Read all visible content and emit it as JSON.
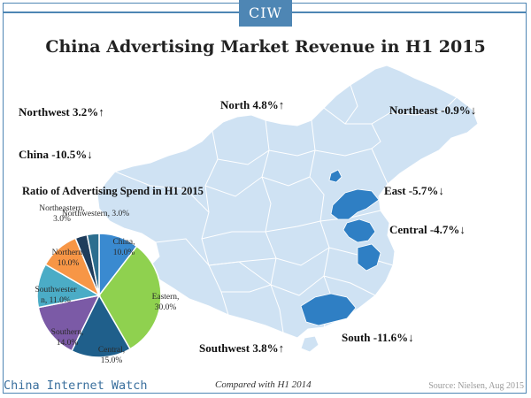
{
  "logo": "CIW",
  "title": "China Advertising Market Revenue in H1 2015",
  "regions": [
    {
      "id": "northwest",
      "label": "Northwest  3.2%↑"
    },
    {
      "id": "north",
      "label": "North 4.8%↑"
    },
    {
      "id": "northeast",
      "label": "Northeast -0.9%↓"
    },
    {
      "id": "china",
      "label": "China -10.5%↓"
    },
    {
      "id": "east",
      "label": "East -5.7%↓"
    },
    {
      "id": "central",
      "label": "Central -4.7%↓"
    },
    {
      "id": "southwest",
      "label": "Southwest  3.8%↑"
    },
    {
      "id": "south",
      "label": "South -11.6%↓"
    }
  ],
  "chart_data": {
    "type": "pie",
    "title": "Ratio of Advertising Spend in H1 2015",
    "slices": [
      {
        "name": "China",
        "value": 10.0,
        "label": "China,\n10.0%",
        "color": "#3a8ad0"
      },
      {
        "name": "Eastern",
        "value": 30.0,
        "label": "Eastern,\n30.0%",
        "color": "#8fd14f"
      },
      {
        "name": "Central",
        "value": 15.0,
        "label": "Central,\n15.0%",
        "color": "#1f5f8b"
      },
      {
        "name": "Southern",
        "value": 14.0,
        "label": "Southern,\n14.0%",
        "color": "#7b5aa6"
      },
      {
        "name": "Southwestern",
        "value": 11.0,
        "label": "Southwester\nn, 11.0%",
        "color": "#4bacc6"
      },
      {
        "name": "Northern",
        "value": 10.0,
        "label": "Northern,\n10.0%",
        "color": "#f79646"
      },
      {
        "name": "Northeastern",
        "value": 3.0,
        "label": "Northeastern,\n3.0%",
        "color": "#1f3d5c"
      },
      {
        "name": "Northwestern",
        "value": 3.0,
        "label": "Northwestern, 3.0%",
        "color": "#2c6e8f"
      }
    ]
  },
  "colors": {
    "accent": "#4e86b4",
    "map_fill": "#cfe2f3",
    "map_highlight": "#2f7fc4"
  },
  "footer": {
    "brand": "China Internet Watch",
    "note": "Compared with H1 2014",
    "source": "Source: Nielsen, Aug 2015"
  }
}
